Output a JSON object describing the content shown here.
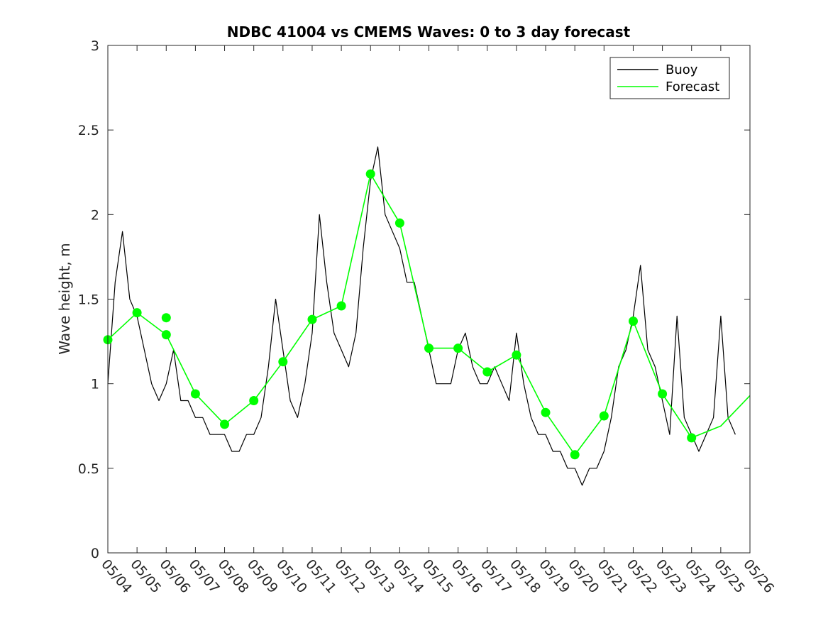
{
  "chart_data": {
    "type": "line",
    "title": "NDBC 41004 vs CMEMS Waves: 0 to 3 day forecast",
    "xlabel": "",
    "ylabel": "Wave height, m",
    "ylim": [
      0,
      3
    ],
    "yticks": [
      "0",
      "0.5",
      "1",
      "1.5",
      "2",
      "2.5",
      "3"
    ],
    "xlim": [
      "05/04",
      "05/26"
    ],
    "xticks": [
      "05/04",
      "05/05",
      "05/06",
      "05/07",
      "05/08",
      "05/09",
      "05/10",
      "05/11",
      "05/12",
      "05/13",
      "05/14",
      "05/15",
      "05/16",
      "05/17",
      "05/18",
      "05/19",
      "05/20",
      "05/21",
      "05/22",
      "05/23",
      "05/24",
      "05/25",
      "05/26"
    ],
    "legend": {
      "position": "top-right",
      "entries": [
        {
          "label": "Buoy",
          "color": "#000000"
        },
        {
          "label": "Forecast",
          "color": "#00ff00"
        }
      ]
    },
    "series": [
      {
        "name": "Buoy",
        "color": "#000000",
        "x": [
          "05/04",
          "05/04 06:00",
          "05/04 12:00",
          "05/04 18:00",
          "05/05",
          "05/05 06:00",
          "05/05 12:00",
          "05/05 18:00",
          "05/06",
          "05/06 06:00",
          "05/06 12:00",
          "05/06 18:00",
          "05/07",
          "05/07 06:00",
          "05/07 12:00",
          "05/07 18:00",
          "05/08",
          "05/08 06:00",
          "05/08 12:00",
          "05/08 18:00",
          "05/09",
          "05/09 06:00",
          "05/09 12:00",
          "05/09 18:00",
          "05/10",
          "05/10 06:00",
          "05/10 12:00",
          "05/10 18:00",
          "05/11",
          "05/11 06:00",
          "05/11 12:00",
          "05/11 18:00",
          "05/12",
          "05/12 06:00",
          "05/12 12:00",
          "05/12 18:00",
          "05/13",
          "05/13 06:00",
          "05/13 12:00",
          "05/13 18:00",
          "05/14",
          "05/14 06:00",
          "05/14 12:00",
          "05/14 18:00",
          "05/15",
          "05/15 06:00",
          "05/15 12:00",
          "05/15 18:00",
          "05/16",
          "05/16 06:00",
          "05/16 12:00",
          "05/16 18:00",
          "05/17",
          "05/17 06:00",
          "05/17 12:00",
          "05/17 18:00",
          "05/18",
          "05/18 06:00",
          "05/18 12:00",
          "05/18 18:00",
          "05/19",
          "05/19 06:00",
          "05/19 12:00",
          "05/19 18:00",
          "05/20",
          "05/20 06:00",
          "05/20 12:00",
          "05/20 18:00",
          "05/21",
          "05/21 06:00",
          "05/21 12:00",
          "05/21 18:00",
          "05/22",
          "05/22 06:00",
          "05/22 12:00",
          "05/22 18:00",
          "05/23",
          "05/23 06:00",
          "05/23 12:00",
          "05/23 18:00",
          "05/24",
          "05/24 06:00",
          "05/24 12:00",
          "05/24 18:00",
          "05/25",
          "05/25 06:00",
          "05/25 12:00"
        ],
        "values": [
          1.0,
          1.6,
          1.9,
          1.5,
          1.4,
          1.2,
          1.0,
          0.9,
          1.0,
          1.2,
          0.9,
          0.9,
          0.8,
          0.8,
          0.7,
          0.7,
          0.7,
          0.6,
          0.6,
          0.7,
          0.7,
          0.8,
          1.1,
          1.5,
          1.2,
          0.9,
          0.8,
          1.0,
          1.3,
          2.0,
          1.6,
          1.3,
          1.2,
          1.1,
          1.3,
          1.8,
          2.2,
          2.4,
          2.0,
          1.9,
          1.8,
          1.6,
          1.6,
          1.4,
          1.2,
          1.0,
          1.0,
          1.0,
          1.2,
          1.3,
          1.1,
          1.0,
          1.0,
          1.1,
          1.0,
          0.9,
          1.3,
          1.0,
          0.8,
          0.7,
          0.7,
          0.6,
          0.6,
          0.5,
          0.5,
          0.4,
          0.5,
          0.5,
          0.6,
          0.8,
          1.1,
          1.2,
          1.4,
          1.7,
          1.2,
          1.1,
          0.9,
          0.7,
          1.4,
          0.8,
          0.7,
          0.6,
          0.7,
          0.8,
          1.4,
          0.8,
          0.7
        ]
      },
      {
        "name": "Forecast",
        "color": "#00ff00",
        "x": [
          "05/04",
          "05/05",
          "05/06",
          "05/07",
          "05/08",
          "05/09",
          "05/10",
          "05/11",
          "05/12",
          "05/13",
          "05/14",
          "05/15",
          "05/16",
          "05/17",
          "05/18",
          "05/19",
          "05/20",
          "05/21",
          "05/22",
          "05/23",
          "05/24",
          "05/25",
          "05/26"
        ],
        "values": [
          1.26,
          1.42,
          1.29,
          0.94,
          0.76,
          0.9,
          1.13,
          1.38,
          1.46,
          2.24,
          1.95,
          1.21,
          1.21,
          1.07,
          1.17,
          0.83,
          0.58,
          0.81,
          1.37,
          0.94,
          0.68,
          0.75,
          0.93
        ]
      }
    ],
    "forecast_init_points": {
      "x": [
        "05/04",
        "05/05",
        "05/06",
        "05/06",
        "05/07",
        "05/08",
        "05/09",
        "05/10",
        "05/11",
        "05/12",
        "05/13",
        "05/14",
        "05/15",
        "05/16",
        "05/17",
        "05/18",
        "05/19",
        "05/20",
        "05/21",
        "05/22",
        "05/23",
        "05/24"
      ],
      "values": [
        1.26,
        1.42,
        1.39,
        1.29,
        0.94,
        0.76,
        0.9,
        1.13,
        1.38,
        1.46,
        2.24,
        1.95,
        1.21,
        1.21,
        1.07,
        1.17,
        0.83,
        0.58,
        0.81,
        1.37,
        0.94,
        0.68
      ]
    }
  }
}
